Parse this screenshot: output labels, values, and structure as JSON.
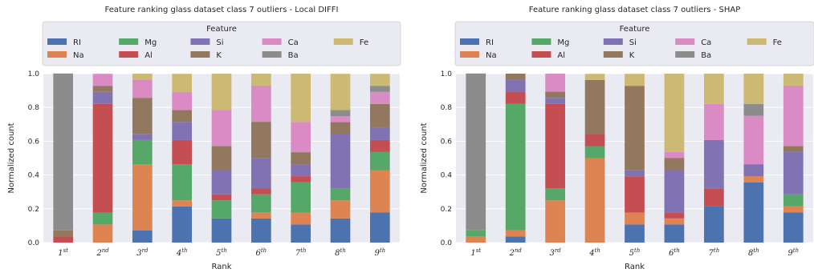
{
  "colors": {
    "RI": "#4c72b0",
    "Na": "#dd8452",
    "Mg": "#55a868",
    "Al": "#c44e52",
    "Si": "#8172b3",
    "K": "#937860",
    "Ca": "#da8bc3",
    "Ba": "#8c8c8c",
    "Fe": "#ccb974",
    "plot_bg": "#eaeaf2",
    "grid": "#ffffff"
  },
  "chart_data": [
    {
      "type": "bar",
      "stacked": true,
      "title": "Feature ranking glass dataset class 7 outliers - Local DIFFI",
      "xlabel": "Rank",
      "ylabel": "Normalized count",
      "ylim": [
        0,
        1.0
      ],
      "yticks": [
        "0.0",
        "0.2",
        "0.4",
        "0.6",
        "0.8",
        "1.0"
      ],
      "categories": [
        {
          "base": "1",
          "sup": "st"
        },
        {
          "base": "2",
          "sup": "nd"
        },
        {
          "base": "3",
          "sup": "rd"
        },
        {
          "base": "4",
          "sup": "th"
        },
        {
          "base": "5",
          "sup": "th"
        },
        {
          "base": "6",
          "sup": "th"
        },
        {
          "base": "7",
          "sup": "th"
        },
        {
          "base": "8",
          "sup": "th"
        },
        {
          "base": "9",
          "sup": "th"
        }
      ],
      "legend_title": "Feature",
      "legend_position": "top",
      "grid": true,
      "series": [
        {
          "name": "RI",
          "values": [
            0.0,
            0.0,
            0.071,
            0.214,
            0.143,
            0.143,
            0.107,
            0.143,
            0.179
          ]
        },
        {
          "name": "Na",
          "values": [
            0.0,
            0.107,
            0.393,
            0.036,
            0.0,
            0.036,
            0.071,
            0.107,
            0.25
          ]
        },
        {
          "name": "Mg",
          "values": [
            0.0,
            0.071,
            0.143,
            0.214,
            0.107,
            0.107,
            0.179,
            0.071,
            0.107
          ]
        },
        {
          "name": "Al",
          "values": [
            0.036,
            0.643,
            0.0,
            0.143,
            0.036,
            0.036,
            0.036,
            0.0,
            0.071
          ]
        },
        {
          "name": "Si",
          "values": [
            0.0,
            0.071,
            0.036,
            0.107,
            0.143,
            0.179,
            0.071,
            0.321,
            0.071
          ]
        },
        {
          "name": "K",
          "values": [
            0.036,
            0.036,
            0.214,
            0.071,
            0.143,
            0.214,
            0.071,
            0.071,
            0.143
          ]
        },
        {
          "name": "Ca",
          "values": [
            0.0,
            0.071,
            0.107,
            0.107,
            0.214,
            0.214,
            0.179,
            0.036,
            0.071
          ]
        },
        {
          "name": "Ba",
          "values": [
            0.929,
            0.0,
            0.0,
            0.0,
            0.0,
            0.0,
            0.0,
            0.036,
            0.036
          ]
        },
        {
          "name": "Fe",
          "values": [
            0.0,
            0.0,
            0.036,
            0.107,
            0.214,
            0.071,
            0.286,
            0.214,
            0.071
          ]
        }
      ]
    },
    {
      "type": "bar",
      "stacked": true,
      "title": "Feature ranking glass dataset class 7 outliers - SHAP",
      "xlabel": "Rank",
      "ylabel": "Normalized count",
      "ylim": [
        0,
        1.0
      ],
      "yticks": [
        "0.0",
        "0.2",
        "0.4",
        "0.6",
        "0.8",
        "1.0"
      ],
      "categories": [
        {
          "base": "1",
          "sup": "st"
        },
        {
          "base": "2",
          "sup": "nd"
        },
        {
          "base": "3",
          "sup": "rd"
        },
        {
          "base": "4",
          "sup": "th"
        },
        {
          "base": "5",
          "sup": "th"
        },
        {
          "base": "6",
          "sup": "th"
        },
        {
          "base": "7",
          "sup": "th"
        },
        {
          "base": "8",
          "sup": "th"
        },
        {
          "base": "9",
          "sup": "th"
        }
      ],
      "legend_title": "Feature",
      "legend_position": "top",
      "grid": true,
      "series": [
        {
          "name": "RI",
          "values": [
            0.0,
            0.036,
            0.0,
            0.0,
            0.107,
            0.107,
            0.214,
            0.357,
            0.179
          ]
        },
        {
          "name": "Na",
          "values": [
            0.036,
            0.036,
            0.25,
            0.5,
            0.071,
            0.036,
            0.0,
            0.036,
            0.036
          ]
        },
        {
          "name": "Mg",
          "values": [
            0.036,
            0.75,
            0.071,
            0.071,
            0.0,
            0.0,
            0.0,
            0.0,
            0.071
          ]
        },
        {
          "name": "Al",
          "values": [
            0.0,
            0.071,
            0.5,
            0.071,
            0.214,
            0.036,
            0.107,
            0.0,
            0.0
          ]
        },
        {
          "name": "Si",
          "values": [
            0.0,
            0.071,
            0.036,
            0.0,
            0.036,
            0.25,
            0.286,
            0.071,
            0.25
          ]
        },
        {
          "name": "K",
          "values": [
            0.0,
            0.036,
            0.036,
            0.321,
            0.5,
            0.071,
            0.0,
            0.0,
            0.036
          ]
        },
        {
          "name": "Ca",
          "values": [
            0.0,
            0.0,
            0.107,
            0.0,
            0.0,
            0.036,
            0.214,
            0.286,
            0.357
          ]
        },
        {
          "name": "Ba",
          "values": [
            0.929,
            0.0,
            0.0,
            0.0,
            0.0,
            0.0,
            0.0,
            0.071,
            0.0
          ]
        },
        {
          "name": "Fe",
          "values": [
            0.0,
            0.0,
            0.0,
            0.036,
            0.071,
            0.464,
            0.179,
            0.179,
            0.071
          ]
        }
      ]
    }
  ]
}
